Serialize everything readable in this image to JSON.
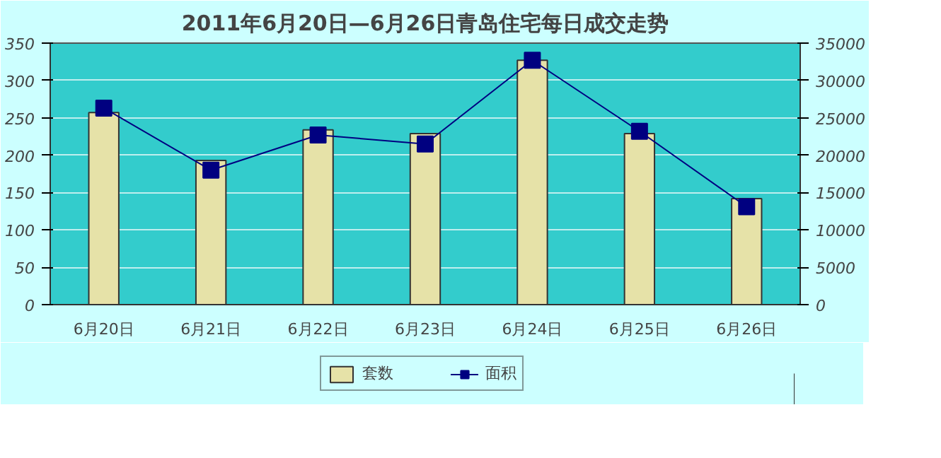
{
  "chart_data": {
    "type": "bar",
    "title": "2011年6月20日—6月26日青岛住宅每日成交走势",
    "categories": [
      "6月20日",
      "6月21日",
      "6月22日",
      "6月23日",
      "6月24日",
      "6月25日",
      "6月26日"
    ],
    "series": [
      {
        "name": "套数",
        "color": "#e6e2a8",
        "values": [
          257,
          193,
          234,
          229,
          327,
          229,
          142
        ]
      },
      {
        "name": "面积",
        "type": "line",
        "axis": "y2",
        "color": "#000080",
        "marker": "square",
        "values": [
          26300,
          18000,
          22700,
          21500,
          32700,
          23200,
          13100
        ]
      }
    ],
    "ylim": [
      0,
      350
    ],
    "yticks": [
      0,
      50,
      100,
      150,
      200,
      250,
      300,
      350
    ],
    "y2lim": [
      0,
      35000
    ],
    "y2ticks": [
      0,
      5000,
      10000,
      15000,
      20000,
      25000,
      30000,
      35000
    ],
    "grid": "y",
    "legend": "bottom"
  }
}
